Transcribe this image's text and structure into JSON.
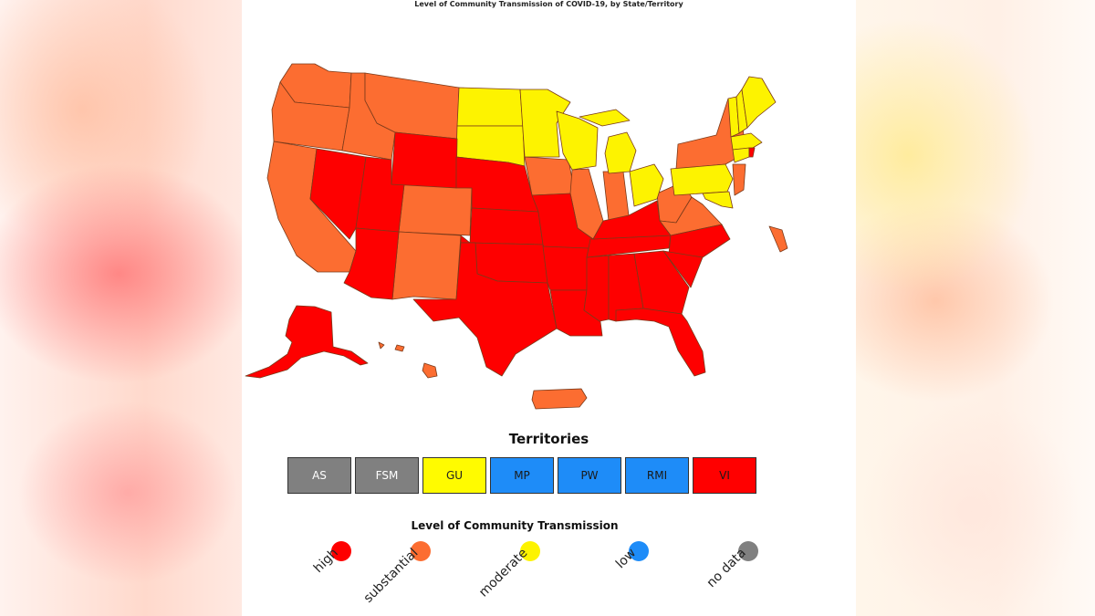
{
  "map": {
    "title": "Level of Community Transmission of COVID-19, by State/Territory"
  },
  "colors": {
    "high": "#fe0000",
    "substantial": "#fc6d31",
    "moderate": "#fdf300",
    "low": "#1e8cf8",
    "no_data": "#808080"
  },
  "territories": {
    "title": "Territories",
    "items": [
      {
        "label": "AS",
        "level": "no data"
      },
      {
        "label": "FSM",
        "level": "no data"
      },
      {
        "label": "GU",
        "level": "moderate"
      },
      {
        "label": "MP",
        "level": "low"
      },
      {
        "label": "PW",
        "level": "low"
      },
      {
        "label": "RMI",
        "level": "low"
      },
      {
        "label": "VI",
        "level": "high"
      }
    ]
  },
  "legend": {
    "title": "Level of Community Transmission",
    "items": [
      {
        "label": "high",
        "color": "#fe0000"
      },
      {
        "label": "substantial",
        "color": "#fc6d31"
      },
      {
        "label": "moderate",
        "color": "#fdf300"
      },
      {
        "label": "low",
        "color": "#1e8cf8"
      },
      {
        "label": "no data",
        "color": "#808080"
      }
    ]
  }
}
